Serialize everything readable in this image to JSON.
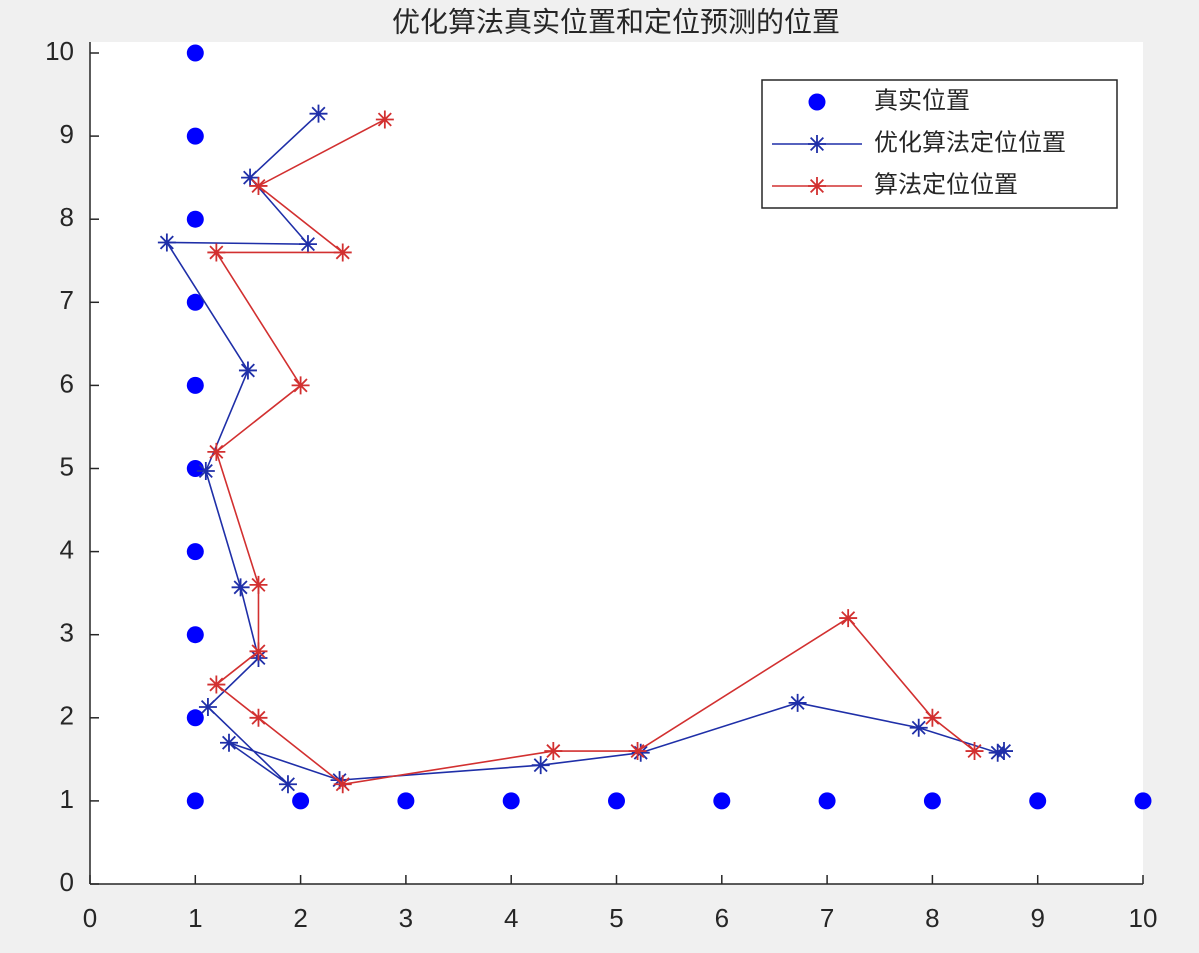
{
  "chart_data": {
    "type": "line",
    "title": "优化算法真实位置和定位预测的位置",
    "xlim": [
      0,
      10
    ],
    "ylim": [
      0,
      10
    ],
    "xticks": [
      0,
      1,
      2,
      3,
      4,
      5,
      6,
      7,
      8,
      9,
      10
    ],
    "yticks": [
      0,
      1,
      2,
      3,
      4,
      5,
      6,
      7,
      8,
      9,
      10
    ],
    "grid": false,
    "legend": "upper-right",
    "series": [
      {
        "name": "真实位置",
        "color": "#0000ff",
        "marker": "dot",
        "line": false,
        "x": [
          1,
          1,
          1,
          1,
          1,
          1,
          1,
          1,
          1,
          1,
          2,
          3,
          4,
          5,
          6,
          7,
          8,
          9,
          10
        ],
        "values": [
          10,
          9,
          8,
          7,
          6,
          5,
          4,
          3,
          2,
          1,
          1,
          1,
          1,
          1,
          1,
          1,
          1,
          1,
          1
        ]
      },
      {
        "name": "优化算法定位位置",
        "color": "#1f2fa8",
        "marker": "star",
        "line": true,
        "x": [
          2.17,
          1.52,
          2.07,
          0.73,
          1.5,
          1.1,
          1.43,
          1.6,
          1.12,
          1.88,
          1.32,
          2.37,
          4.28,
          5.23,
          6.72,
          7.87,
          8.62,
          8.68
        ],
        "values": [
          9.27,
          8.5,
          7.7,
          7.72,
          6.18,
          4.97,
          3.57,
          2.72,
          2.13,
          1.2,
          1.7,
          1.25,
          1.43,
          1.58,
          2.18,
          1.88,
          1.58,
          1.6
        ]
      },
      {
        "name": "算法定位位置",
        "color": "#d23030",
        "marker": "star",
        "line": true,
        "x": [
          2.8,
          1.6,
          2.4,
          1.2,
          2.0,
          1.2,
          1.6,
          1.6,
          1.2,
          1.6,
          2.4,
          4.4,
          5.2,
          7.2,
          8.0,
          8.4
        ],
        "values": [
          9.2,
          8.4,
          7.6,
          7.6,
          6.0,
          5.2,
          3.6,
          2.8,
          2.4,
          2.0,
          1.2,
          1.6,
          1.6,
          3.2,
          2.0,
          1.6
        ]
      }
    ]
  }
}
